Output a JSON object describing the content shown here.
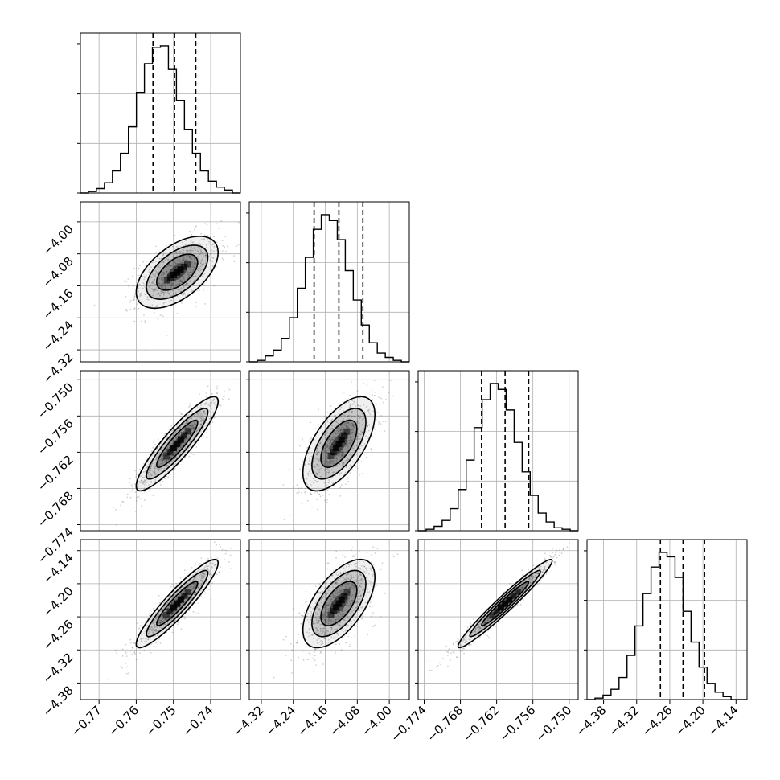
{
  "chart_data": {
    "type": "corner",
    "parameters": 4,
    "axes": [
      {
        "range": [
          -0.775,
          -0.732
        ],
        "ticks": [
          -0.77,
          -0.76,
          -0.75,
          -0.74
        ],
        "tick_labels": [
          "−0.77",
          "−0.76",
          "−0.75",
          "−0.74"
        ]
      },
      {
        "range": [
          -4.35,
          -3.95
        ],
        "ticks": [
          -4.32,
          -4.24,
          -4.16,
          -4.08,
          -4.0
        ],
        "tick_labels": [
          "−4.32",
          "−4.24",
          "−4.16",
          "−4.08",
          "−4.00"
        ]
      },
      {
        "range": [
          -0.775,
          -0.7485
        ],
        "ticks": [
          -0.774,
          -0.768,
          -0.762,
          -0.756,
          -0.75
        ],
        "tick_labels": [
          "−0.774",
          "−0.768",
          "−0.762",
          "−0.756",
          "−0.750"
        ]
      },
      {
        "range": [
          -4.41,
          -4.12
        ],
        "ticks": [
          -4.38,
          -4.32,
          -4.26,
          -4.2,
          -4.14
        ],
        "tick_labels": [
          "−4.38",
          "−4.32",
          "−4.26",
          "−4.20",
          "−4.14"
        ]
      }
    ],
    "marginals": [
      {
        "quantiles": [
          -0.7555,
          -0.7497,
          -0.744
        ],
        "hist_heights": [
          0.0,
          0.01,
          0.03,
          0.07,
          0.15,
          0.27,
          0.45,
          0.68,
          0.88,
          0.99,
          1.0,
          0.84,
          0.63,
          0.43,
          0.27,
          0.15,
          0.08,
          0.04,
          0.02,
          0.0
        ]
      },
      {
        "quantiles": [
          -4.188,
          -4.126,
          -4.066
        ],
        "hist_heights": [
          0.0,
          0.01,
          0.04,
          0.08,
          0.16,
          0.3,
          0.5,
          0.71,
          0.9,
          1.0,
          0.96,
          0.83,
          0.62,
          0.42,
          0.25,
          0.13,
          0.06,
          0.03,
          0.01,
          0.0
        ]
      },
      {
        "quantiles": [
          -0.7645,
          -0.7606,
          -0.7567
        ],
        "hist_heights": [
          0.0,
          0.01,
          0.03,
          0.07,
          0.15,
          0.28,
          0.48,
          0.7,
          0.89,
          1.0,
          0.96,
          0.82,
          0.6,
          0.4,
          0.24,
          0.12,
          0.06,
          0.02,
          0.01,
          0.0
        ]
      },
      {
        "quantiles": [
          -4.277,
          -4.236,
          -4.197
        ],
        "hist_heights": [
          0.0,
          0.01,
          0.03,
          0.07,
          0.15,
          0.3,
          0.5,
          0.72,
          0.9,
          1.0,
          0.97,
          0.83,
          0.6,
          0.39,
          0.22,
          0.11,
          0.05,
          0.02,
          0.0,
          0.0
        ]
      }
    ],
    "pairs": [
      {
        "row": 1,
        "col": 0,
        "mean": [
          -0.749,
          -4.126
        ],
        "std": [
          0.0055,
          0.045
        ],
        "corr": 0.55
      },
      {
        "row": 2,
        "col": 0,
        "mean": [
          -0.749,
          -0.7606
        ],
        "std": [
          0.0055,
          0.0039
        ],
        "corr": 0.9
      },
      {
        "row": 2,
        "col": 1,
        "mean": [
          -4.126,
          -0.7606
        ],
        "std": [
          0.045,
          0.0039
        ],
        "corr": 0.62
      },
      {
        "row": 3,
        "col": 0,
        "mean": [
          -0.749,
          -4.236
        ],
        "std": [
          0.0055,
          0.04
        ],
        "corr": 0.92
      },
      {
        "row": 3,
        "col": 1,
        "mean": [
          -4.126,
          -4.236
        ],
        "std": [
          0.045,
          0.04
        ],
        "corr": 0.6
      },
      {
        "row": 3,
        "col": 2,
        "mean": [
          -0.7606,
          -4.236
        ],
        "std": [
          0.0039,
          0.04
        ],
        "corr": 0.97
      }
    ],
    "grid": true,
    "colors": {
      "line": "#000000",
      "grid": "#b0b0b0",
      "points": "#4d4d4d",
      "fill": "#000000"
    }
  }
}
